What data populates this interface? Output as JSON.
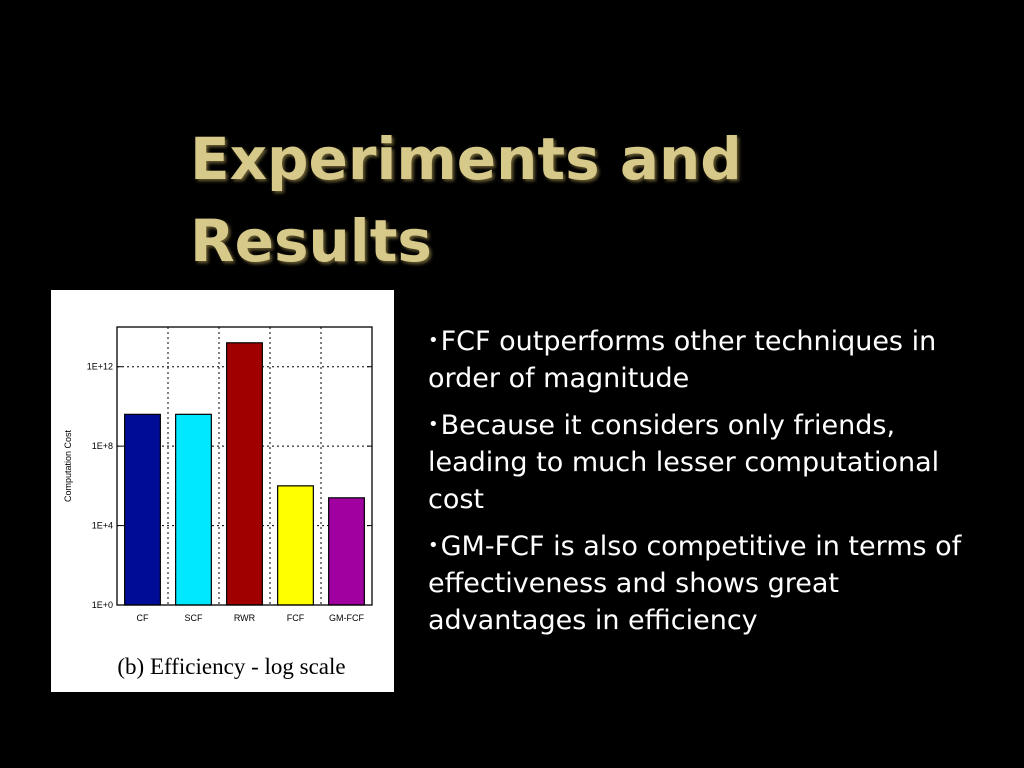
{
  "slide": {
    "title_line1": "Experiments and",
    "title_line2": "Results",
    "bullets": [
      "FCF outperforms other techniques in order of magnitude",
      "Because it considers only friends, leading to much lesser computational cost",
      "GM-FCF is also competitive in terms of effectiveness and shows great advantages in efficiency"
    ],
    "bullet_symbol": "•"
  },
  "chart_data": {
    "type": "bar",
    "caption": "(b) Efficiency - log scale",
    "ylabel": "Computation Cost",
    "xlabel": "",
    "yscale": "log",
    "ylim": [
      1,
      100000000000000.0
    ],
    "yticks": [
      1,
      10000,
      100000000,
      1000000000000
    ],
    "ytick_labels": [
      "1E+0",
      "1E+4",
      "1E+8",
      "1E+12"
    ],
    "grid": true,
    "categories": [
      "CF",
      "SCF",
      "RWR",
      "FCF",
      "GM-FCF"
    ],
    "values": [
      4000000000.0,
      4000000000.0,
      16000000000000.0,
      1000000.0,
      250000.0
    ],
    "colors": [
      "#000c96",
      "#00e8ff",
      "#a00000",
      "#ffff00",
      "#a000a0"
    ]
  }
}
